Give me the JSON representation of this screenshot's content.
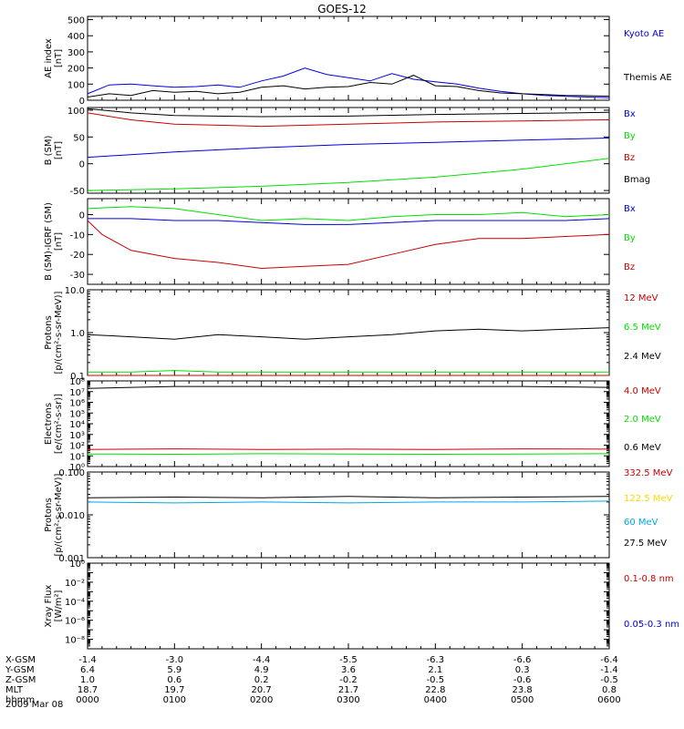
{
  "title": "GOES-12",
  "date_label": "2009 Mar 08",
  "colors": {
    "black": "#000000",
    "red": "#c80000",
    "green": "#00e000",
    "blue": "#0000dc",
    "yellow": "#ffd700",
    "cyan": "#00a8e0"
  },
  "chart_data": [
    {
      "id": "ae",
      "type": "line",
      "ylabel": "AE index\n[nT]",
      "ylim": [
        0,
        520
      ],
      "yscale": "linear",
      "ticks": [
        {
          "v": 0,
          "label": "0"
        },
        {
          "v": 100,
          "label": "100"
        },
        {
          "v": 200,
          "label": "200"
        },
        {
          "v": 300,
          "label": "300"
        },
        {
          "v": 400,
          "label": "400"
        },
        {
          "v": 500,
          "label": "500"
        }
      ],
      "series": [
        {
          "name": "Kyoto AE",
          "color": "blue",
          "x": [
            0,
            15,
            30,
            45,
            60,
            75,
            90,
            105,
            120,
            135,
            150,
            165,
            180,
            195,
            210,
            225,
            240,
            255,
            270,
            285,
            300,
            315,
            330,
            345,
            360
          ],
          "y": [
            40,
            95,
            100,
            90,
            80,
            85,
            95,
            80,
            120,
            150,
            200,
            160,
            140,
            120,
            165,
            130,
            115,
            100,
            75,
            55,
            40,
            30,
            25,
            20,
            15
          ]
        },
        {
          "name": "Themis AE",
          "color": "black",
          "x": [
            0,
            15,
            30,
            45,
            60,
            75,
            90,
            105,
            120,
            135,
            150,
            165,
            180,
            195,
            210,
            225,
            240,
            255,
            270,
            285,
            300,
            315,
            330,
            345,
            360
          ],
          "y": [
            20,
            40,
            30,
            60,
            50,
            55,
            40,
            50,
            80,
            90,
            70,
            80,
            85,
            110,
            100,
            155,
            90,
            85,
            60,
            45,
            40,
            35,
            30,
            28,
            25
          ]
        }
      ]
    },
    {
      "id": "bsm",
      "type": "line",
      "ylabel": "B (SM)\n[nT]",
      "ylim": [
        -55,
        105
      ],
      "yscale": "linear",
      "ticks": [
        {
          "v": -50,
          "label": "-50"
        },
        {
          "v": 0,
          "label": "0"
        },
        {
          "v": 50,
          "label": "50"
        },
        {
          "v": 100,
          "label": "100"
        }
      ],
      "series": [
        {
          "name": "Bx",
          "color": "blue",
          "x": [
            0,
            60,
            120,
            180,
            240,
            300,
            360
          ],
          "y": [
            12,
            22,
            30,
            36,
            40,
            44,
            48
          ]
        },
        {
          "name": "By",
          "color": "green",
          "x": [
            0,
            60,
            120,
            180,
            240,
            300,
            360
          ],
          "y": [
            -50,
            -47,
            -42,
            -35,
            -25,
            -10,
            10
          ]
        },
        {
          "name": "Bz",
          "color": "red",
          "x": [
            0,
            30,
            60,
            120,
            180,
            240,
            300,
            360
          ],
          "y": [
            95,
            82,
            74,
            70,
            74,
            78,
            80,
            82
          ]
        },
        {
          "name": "Bmag",
          "color": "black",
          "x": [
            0,
            30,
            60,
            120,
            180,
            240,
            300,
            360
          ],
          "y": [
            103,
            95,
            90,
            88,
            89,
            92,
            94,
            96
          ]
        }
      ]
    },
    {
      "id": "bigrf",
      "type": "line",
      "ylabel": "B (SM)-IGRF (SM)\n[nT]",
      "ylim": [
        -35,
        8
      ],
      "yscale": "linear",
      "ticks": [
        {
          "v": -30,
          "label": "-30"
        },
        {
          "v": -20,
          "label": "-20"
        },
        {
          "v": -10,
          "label": "-10"
        },
        {
          "v": 0,
          "label": "0"
        }
      ],
      "series": [
        {
          "name": "Bx",
          "color": "blue",
          "x": [
            0,
            30,
            60,
            90,
            120,
            150,
            180,
            210,
            240,
            270,
            300,
            330,
            360
          ],
          "y": [
            -2,
            -2,
            -3,
            -3,
            -4,
            -5,
            -5,
            -4,
            -3,
            -3,
            -3,
            -3,
            -2
          ]
        },
        {
          "name": "By",
          "color": "green",
          "x": [
            0,
            30,
            60,
            90,
            120,
            150,
            180,
            210,
            240,
            270,
            300,
            330,
            360
          ],
          "y": [
            3,
            4,
            3,
            0,
            -3,
            -2,
            -3,
            -1,
            0,
            0,
            1,
            -1,
            0
          ]
        },
        {
          "name": "Bz",
          "color": "red",
          "x": [
            0,
            10,
            30,
            60,
            90,
            120,
            150,
            180,
            210,
            240,
            270,
            300,
            330,
            360
          ],
          "y": [
            -3,
            -10,
            -18,
            -22,
            -24,
            -27,
            -26,
            -25,
            -20,
            -15,
            -12,
            -12,
            -11,
            -10
          ]
        }
      ]
    },
    {
      "id": "protons_hi",
      "type": "line",
      "ylabel": "Protons\n[p/(cm²-s-sr-MeV)]",
      "ylim": [
        0.1,
        10
      ],
      "yscale": "log",
      "ticks": [
        {
          "v": 0.1,
          "label": "0.1"
        },
        {
          "v": 1,
          "label": "1.0"
        },
        {
          "v": 10,
          "label": "10.0"
        }
      ],
      "series": [
        {
          "name": "12 MeV",
          "color": "red",
          "x": [
            0,
            360
          ],
          "y": [
            0.1,
            0.1
          ]
        },
        {
          "name": "6.5 MeV",
          "color": "green",
          "x": [
            0,
            30,
            60,
            90,
            120,
            150,
            180,
            210,
            240,
            270,
            300,
            330,
            360
          ],
          "y": [
            0.12,
            0.12,
            0.13,
            0.12,
            0.12,
            0.12,
            0.12,
            0.12,
            0.12,
            0.12,
            0.12,
            0.12,
            0.12
          ]
        },
        {
          "name": "2.4 MeV",
          "color": "black",
          "x": [
            0,
            30,
            60,
            90,
            120,
            150,
            180,
            210,
            240,
            270,
            300,
            330,
            360
          ],
          "y": [
            0.9,
            0.8,
            0.7,
            0.9,
            0.8,
            0.7,
            0.8,
            0.9,
            1.1,
            1.2,
            1.1,
            1.2,
            1.3
          ]
        }
      ]
    },
    {
      "id": "electrons",
      "type": "line",
      "ylabel": "Electrons\n[e/(cm²-s-sr)]",
      "ylim": [
        1,
        100000000
      ],
      "yscale": "log",
      "ticks": [
        {
          "v": 1,
          "label": "10⁰"
        },
        {
          "v": 10,
          "label": "10¹"
        },
        {
          "v": 100,
          "label": "10²"
        },
        {
          "v": 1000,
          "label": "10³"
        },
        {
          "v": 10000,
          "label": "10⁴"
        },
        {
          "v": 100000,
          "label": "10⁵"
        },
        {
          "v": 1000000,
          "label": "10⁶"
        },
        {
          "v": 10000000,
          "label": "10⁷"
        },
        {
          "v": 100000000,
          "label": "10⁸"
        }
      ],
      "series": [
        {
          "name": "4.0 MeV",
          "color": "red",
          "x": [
            0,
            60,
            120,
            180,
            240,
            300,
            360
          ],
          "y": [
            40,
            45,
            40,
            42,
            40,
            45,
            42
          ]
        },
        {
          "name": "2.0 MeV",
          "color": "green",
          "x": [
            0,
            60,
            120,
            180,
            240,
            300,
            360
          ],
          "y": [
            15,
            14,
            16,
            15,
            14,
            15,
            16
          ]
        },
        {
          "name": "0.6 MeV",
          "color": "black",
          "x": [
            0,
            30,
            60,
            120,
            180,
            240,
            300,
            360
          ],
          "y": [
            20000000,
            25000000,
            30000000,
            30000000,
            28000000,
            30000000,
            30000000,
            25000000
          ]
        }
      ]
    },
    {
      "id": "protons_lo",
      "type": "line",
      "ylabel": "Protons\n[p/(cm²-s-sr-MeV)]",
      "ylim": [
        0.001,
        0.1
      ],
      "yscale": "log",
      "ticks": [
        {
          "v": 0.001,
          "label": "0.001"
        },
        {
          "v": 0.01,
          "label": "0.010"
        },
        {
          "v": 0.1,
          "label": "0.100"
        }
      ],
      "series": [
        {
          "name": "332.5 MeV",
          "color": "red",
          "x": [],
          "y": []
        },
        {
          "name": "122.5 MeV",
          "color": "yellow",
          "x": [],
          "y": []
        },
        {
          "name": "60 MeV",
          "color": "cyan",
          "x": [
            0,
            60,
            120,
            180,
            240,
            300,
            360
          ],
          "y": [
            0.02,
            0.019,
            0.02,
            0.019,
            0.02,
            0.02,
            0.021
          ]
        },
        {
          "name": "27.5 MeV",
          "color": "black",
          "x": [
            0,
            60,
            120,
            180,
            240,
            300,
            360
          ],
          "y": [
            0.025,
            0.026,
            0.025,
            0.027,
            0.025,
            0.026,
            0.027
          ]
        }
      ]
    },
    {
      "id": "xray",
      "type": "line",
      "ylabel": "Xray Flux\n[W/m²]",
      "ylim": [
        1e-09,
        1
      ],
      "yscale": "log",
      "ticks": [
        {
          "v": 1e-09,
          "label": ""
        },
        {
          "v": 1e-08,
          "label": "10⁻⁸"
        },
        {
          "v": 1e-07,
          "label": ""
        },
        {
          "v": 1e-06,
          "label": "10⁻⁶"
        },
        {
          "v": 1e-05,
          "label": ""
        },
        {
          "v": 0.0001,
          "label": "10⁻⁴"
        },
        {
          "v": 0.001,
          "label": ""
        },
        {
          "v": 0.01,
          "label": "10⁻²"
        },
        {
          "v": 0.1,
          "label": ""
        },
        {
          "v": 1,
          "label": "10⁰"
        }
      ],
      "series": [
        {
          "name": "0.1-0.8 nm",
          "color": "red",
          "x": [],
          "y": []
        },
        {
          "name": "0.05-0.3 nm",
          "color": "blue",
          "x": [],
          "y": []
        }
      ]
    }
  ],
  "xaxis": {
    "xlim": [
      0,
      360
    ],
    "rows": [
      {
        "label": "X-GSM",
        "values": [
          "-1.4",
          "-3.0",
          "-4.4",
          "-5.5",
          "-6.3",
          "-6.6",
          "-6.4"
        ]
      },
      {
        "label": "Y-GSM",
        "values": [
          "6.4",
          "5.9",
          "4.9",
          "3.6",
          "2.1",
          "0.3",
          "-1.4"
        ]
      },
      {
        "label": "Z-GSM",
        "values": [
          "1.0",
          "0.6",
          "0.2",
          "-0.2",
          "-0.5",
          "-0.6",
          "-0.5"
        ]
      },
      {
        "label": "MLT",
        "values": [
          "18.7",
          "19.7",
          "20.7",
          "21.7",
          "22.8",
          "23.8",
          "0.8"
        ]
      },
      {
        "label": "hhmm",
        "values": [
          "0000",
          "0100",
          "0200",
          "0300",
          "0400",
          "0500",
          "0600"
        ]
      }
    ],
    "tick_x": [
      0,
      60,
      120,
      180,
      240,
      300,
      360
    ]
  }
}
